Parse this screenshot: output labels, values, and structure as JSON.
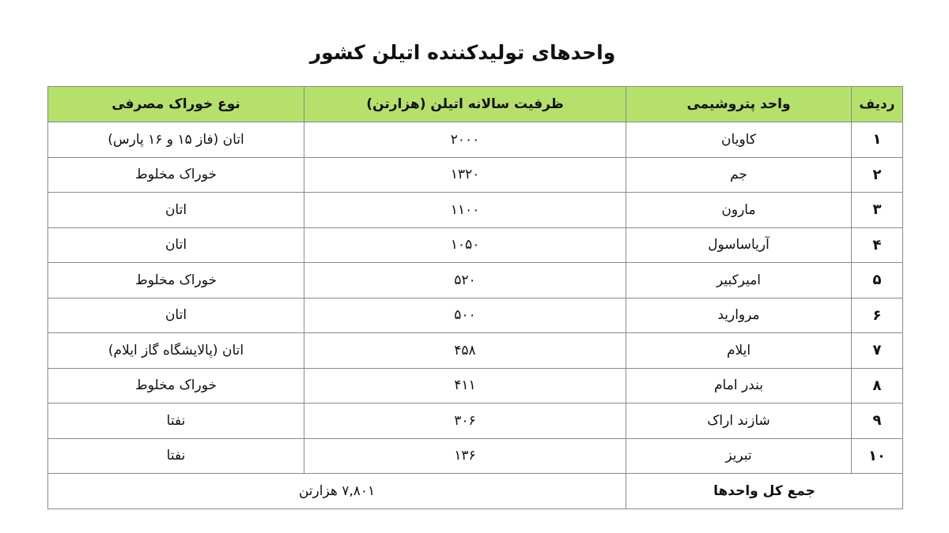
{
  "title": "واحدهای تولیدکننده اتیلن کشور",
  "header_color": "#b6e06c",
  "columns": [
    "ردیف",
    "واحد پتروشیمی",
    "ظرفیت سالانه اتیلن (هزارتن)",
    "نوع خوراک مصرفی"
  ],
  "rows": [
    {
      "no": "۱",
      "unit": "کاویان",
      "capacity": "۲۰۰۰",
      "feed": "اتان (فاز ۱۵ و ۱۶ پارس)"
    },
    {
      "no": "۲",
      "unit": "جم",
      "capacity": "۱۳۲۰",
      "feed": "خوراک مخلوط"
    },
    {
      "no": "۳",
      "unit": "مارون",
      "capacity": "۱۱۰۰",
      "feed": "اتان"
    },
    {
      "no": "۴",
      "unit": "آریاساسول",
      "capacity": "۱۰۵۰",
      "feed": "اتان"
    },
    {
      "no": "۵",
      "unit": "امیرکبیر",
      "capacity": "۵۲۰",
      "feed": "خوراک مخلوط"
    },
    {
      "no": "۶",
      "unit": "مروارید",
      "capacity": "۵۰۰",
      "feed": "اتان"
    },
    {
      "no": "۷",
      "unit": "ایلام",
      "capacity": "۴۵۸",
      "feed": "اتان (پالایشگاه گاز ایلام)"
    },
    {
      "no": "۸",
      "unit": "بندر امام",
      "capacity": "۴۱۱",
      "feed": "خوراک مخلوط"
    },
    {
      "no": "۹",
      "unit": "شازند اراک",
      "capacity": "۳۰۶",
      "feed": "نفتا"
    },
    {
      "no": "۱۰",
      "unit": "تبریز",
      "capacity": "۱۳۶",
      "feed": "نفتا"
    }
  ],
  "total": {
    "label": "جمع کل واحدها",
    "value": "۷,۸۰۱ هزارتن"
  }
}
